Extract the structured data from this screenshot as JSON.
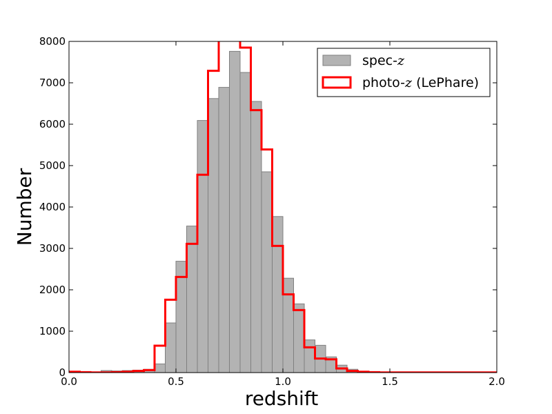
{
  "chart_data": {
    "type": "histogram",
    "xlabel": "redshift",
    "ylabel": "Number",
    "xlim": [
      0.0,
      2.0
    ],
    "ylim": [
      0,
      8000
    ],
    "xticks": [
      "0.0",
      "0.5",
      "1.0",
      "1.5",
      "2.0"
    ],
    "yticks": [
      "0",
      "1000",
      "2000",
      "3000",
      "4000",
      "5000",
      "6000",
      "7000",
      "8000"
    ],
    "legend_position": "top-right",
    "bin_width": 0.05,
    "bin_edges": [
      0.0,
      0.05,
      0.1,
      0.15,
      0.2,
      0.25,
      0.3,
      0.35,
      0.4,
      0.45,
      0.5,
      0.55,
      0.6,
      0.65,
      0.7,
      0.75,
      0.8,
      0.85,
      0.9,
      0.95,
      1.0,
      1.05,
      1.1,
      1.15,
      1.2,
      1.25,
      1.3,
      1.35,
      1.4,
      1.45,
      1.5,
      1.55,
      1.6,
      1.65,
      1.7,
      1.75,
      1.8,
      1.85,
      1.9,
      1.95,
      2.0
    ],
    "series": [
      {
        "name_prefix": "spec-",
        "name_italic": "z",
        "style": "filled",
        "fill": "#b3b3b3",
        "edge": "#7f7f7f",
        "values": [
          20,
          10,
          10,
          50,
          40,
          50,
          60,
          80,
          210,
          1200,
          2690,
          3540,
          6090,
          6620,
          6890,
          7760,
          7250,
          6550,
          4850,
          3770,
          2280,
          1660,
          790,
          660,
          380,
          180,
          80,
          30,
          20,
          10,
          10,
          5,
          5,
          5,
          5,
          5,
          5,
          5,
          5,
          5
        ]
      },
      {
        "name_prefix": "photo-",
        "name_italic": "z",
        "name_suffix": " (LePhare)",
        "style": "step",
        "edge": "#ff0000",
        "values": [
          20,
          10,
          5,
          5,
          10,
          20,
          40,
          60,
          650,
          1760,
          2310,
          3110,
          4780,
          7290,
          8080,
          8200,
          7850,
          6340,
          5390,
          3060,
          1890,
          1510,
          610,
          340,
          320,
          100,
          40,
          20,
          10,
          5,
          5,
          5,
          5,
          5,
          5,
          5,
          5,
          5,
          5,
          5
        ]
      }
    ]
  }
}
